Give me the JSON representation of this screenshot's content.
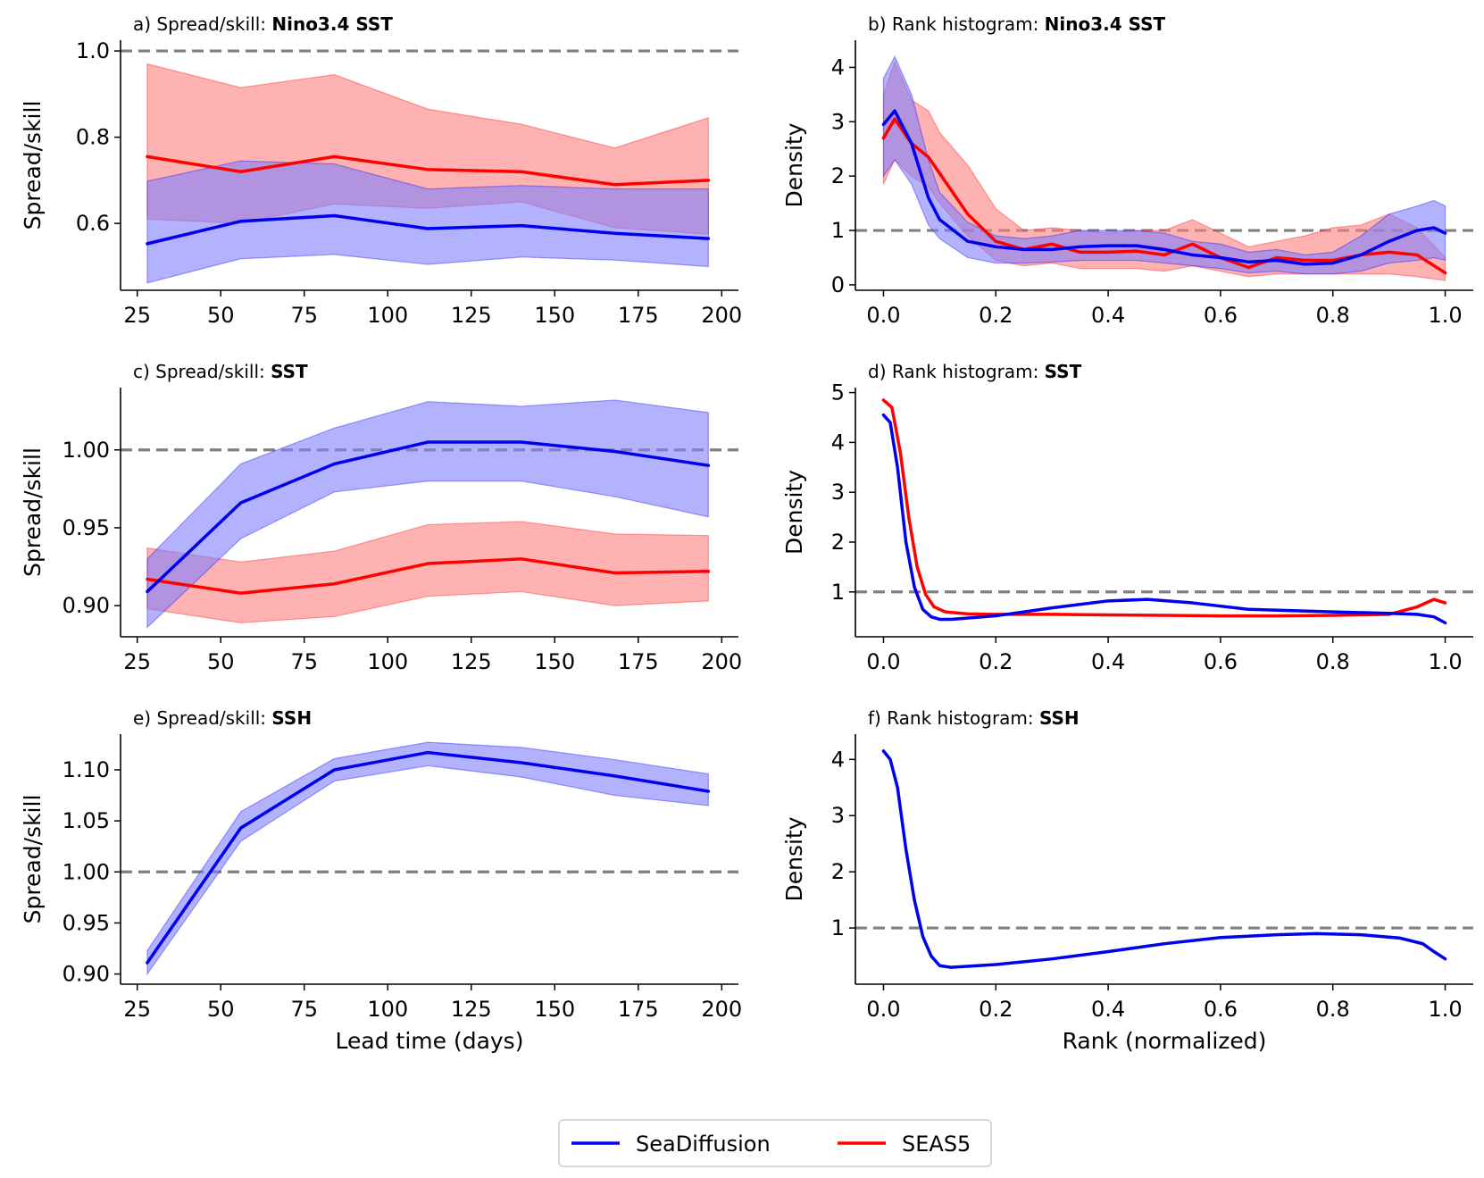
{
  "chart_data": [
    {
      "id": "a",
      "type": "line",
      "title_prefix": "a) Spread/skill: ",
      "title_bold": "Nino3.4 SST",
      "xlabel": "",
      "ylabel": "Spread/skill",
      "xlim": [
        20,
        205
      ],
      "ylim": [
        0.445,
        1.025
      ],
      "xticks": [
        25,
        50,
        75,
        100,
        125,
        150,
        175,
        200
      ],
      "yticks": [
        0.6,
        0.8,
        1.0
      ],
      "ytick_labels": [
        "0.6",
        "0.8",
        "1.0"
      ],
      "reference_line": 1.0,
      "series": [
        {
          "name": "SEAS5",
          "color": "#ff0000",
          "x": [
            28,
            56,
            84,
            112,
            140,
            168,
            196
          ],
          "y": [
            0.755,
            0.72,
            0.755,
            0.725,
            0.72,
            0.69,
            0.7
          ],
          "lower": [
            0.61,
            0.6,
            0.645,
            0.635,
            0.65,
            0.59,
            0.575
          ],
          "upper": [
            0.97,
            0.915,
            0.945,
            0.865,
            0.83,
            0.775,
            0.845
          ]
        },
        {
          "name": "SeaDiffusion",
          "color": "#0000ee",
          "x": [
            28,
            56,
            84,
            112,
            140,
            168,
            196
          ],
          "y": [
            0.553,
            0.605,
            0.618,
            0.588,
            0.595,
            0.577,
            0.565
          ],
          "lower": [
            0.462,
            0.518,
            0.528,
            0.505,
            0.522,
            0.515,
            0.5
          ],
          "upper": [
            0.698,
            0.745,
            0.738,
            0.68,
            0.688,
            0.68,
            0.68
          ]
        }
      ]
    },
    {
      "id": "b",
      "type": "line",
      "title_prefix": "b) Rank histogram: ",
      "title_bold": "Nino3.4 SST",
      "xlabel": "",
      "ylabel": "Density",
      "xlim": [
        -0.05,
        1.05
      ],
      "ylim": [
        -0.1,
        4.5
      ],
      "xticks": [
        0.0,
        0.2,
        0.4,
        0.6,
        0.8,
        1.0
      ],
      "xtick_labels": [
        "0.0",
        "0.2",
        "0.4",
        "0.6",
        "0.8",
        "1.0"
      ],
      "yticks": [
        0,
        1,
        2,
        3,
        4
      ],
      "reference_line": 1.0,
      "series": [
        {
          "name": "SEAS5",
          "color": "#ff0000",
          "x": [
            0.0,
            0.02,
            0.05,
            0.08,
            0.1,
            0.15,
            0.2,
            0.25,
            0.3,
            0.35,
            0.4,
            0.45,
            0.5,
            0.55,
            0.6,
            0.65,
            0.7,
            0.75,
            0.8,
            0.85,
            0.9,
            0.95,
            1.0
          ],
          "y": [
            2.7,
            3.05,
            2.6,
            2.35,
            2.05,
            1.3,
            0.8,
            0.65,
            0.75,
            0.6,
            0.6,
            0.62,
            0.55,
            0.75,
            0.5,
            0.32,
            0.5,
            0.45,
            0.45,
            0.55,
            0.6,
            0.55,
            0.22
          ],
          "lower": [
            1.85,
            2.3,
            2.0,
            1.8,
            1.5,
            0.9,
            0.45,
            0.35,
            0.4,
            0.3,
            0.3,
            0.3,
            0.25,
            0.35,
            0.25,
            0.15,
            0.2,
            0.2,
            0.2,
            0.2,
            0.2,
            0.15,
            0.08
          ],
          "upper": [
            3.5,
            4.1,
            3.4,
            3.2,
            2.8,
            2.2,
            1.4,
            1.0,
            1.05,
            1.0,
            0.95,
            1.0,
            1.0,
            1.2,
            0.95,
            0.7,
            0.8,
            0.9,
            1.05,
            1.1,
            1.3,
            1.05,
            0.5
          ]
        },
        {
          "name": "SeaDiffusion",
          "color": "#0000ee",
          "x": [
            0.0,
            0.02,
            0.05,
            0.08,
            0.1,
            0.15,
            0.2,
            0.25,
            0.3,
            0.35,
            0.4,
            0.45,
            0.5,
            0.55,
            0.6,
            0.65,
            0.7,
            0.75,
            0.8,
            0.85,
            0.9,
            0.95,
            0.98,
            1.0
          ],
          "y": [
            2.95,
            3.2,
            2.6,
            1.6,
            1.2,
            0.8,
            0.7,
            0.65,
            0.65,
            0.7,
            0.72,
            0.72,
            0.65,
            0.55,
            0.5,
            0.42,
            0.45,
            0.38,
            0.4,
            0.55,
            0.8,
            1.0,
            1.05,
            0.95
          ],
          "lower": [
            2.0,
            2.3,
            1.85,
            1.1,
            0.85,
            0.5,
            0.4,
            0.4,
            0.42,
            0.45,
            0.45,
            0.45,
            0.4,
            0.35,
            0.3,
            0.22,
            0.25,
            0.2,
            0.2,
            0.25,
            0.4,
            0.45,
            0.5,
            0.45
          ],
          "upper": [
            3.8,
            4.2,
            3.5,
            2.3,
            1.7,
            1.15,
            0.9,
            0.85,
            0.9,
            1.0,
            1.0,
            1.0,
            0.95,
            0.8,
            0.75,
            0.6,
            0.65,
            0.55,
            0.6,
            0.9,
            1.3,
            1.45,
            1.55,
            1.45
          ]
        }
      ]
    },
    {
      "id": "c",
      "type": "line",
      "title_prefix": "c) Spread/skill: ",
      "title_bold": "SST",
      "xlabel": "",
      "ylabel": "Spread/skill",
      "xlim": [
        20,
        205
      ],
      "ylim": [
        0.88,
        1.04
      ],
      "xticks": [
        25,
        50,
        75,
        100,
        125,
        150,
        175,
        200
      ],
      "yticks": [
        0.9,
        0.95,
        1.0
      ],
      "ytick_labels": [
        "0.90",
        "0.95",
        "1.00"
      ],
      "reference_line": 1.0,
      "series": [
        {
          "name": "SEAS5",
          "color": "#ff0000",
          "x": [
            28,
            56,
            84,
            112,
            140,
            168,
            196
          ],
          "y": [
            0.917,
            0.908,
            0.914,
            0.927,
            0.93,
            0.921,
            0.922
          ],
          "lower": [
            0.898,
            0.889,
            0.893,
            0.906,
            0.909,
            0.9,
            0.903
          ],
          "upper": [
            0.937,
            0.928,
            0.935,
            0.952,
            0.954,
            0.946,
            0.945
          ]
        },
        {
          "name": "SeaDiffusion",
          "color": "#0000ee",
          "x": [
            28,
            56,
            84,
            112,
            140,
            168,
            196
          ],
          "y": [
            0.909,
            0.966,
            0.991,
            1.005,
            1.005,
            0.999,
            0.99
          ],
          "lower": [
            0.886,
            0.943,
            0.973,
            0.98,
            0.98,
            0.97,
            0.957
          ],
          "upper": [
            0.93,
            0.991,
            1.014,
            1.031,
            1.028,
            1.032,
            1.024
          ]
        }
      ]
    },
    {
      "id": "d",
      "type": "line",
      "title_prefix": "d) Rank histogram: ",
      "title_bold": "SST",
      "xlabel": "",
      "ylabel": "Density",
      "xlim": [
        -0.05,
        1.05
      ],
      "ylim": [
        0.1,
        5.1
      ],
      "xticks": [
        0.0,
        0.2,
        0.4,
        0.6,
        0.8,
        1.0
      ],
      "xtick_labels": [
        "0.0",
        "0.2",
        "0.4",
        "0.6",
        "0.8",
        "1.0"
      ],
      "yticks": [
        1,
        2,
        3,
        4,
        5
      ],
      "reference_line": 1.0,
      "series": [
        {
          "name": "SEAS5",
          "color": "#ff0000",
          "x": [
            0.0,
            0.015,
            0.03,
            0.045,
            0.06,
            0.075,
            0.09,
            0.11,
            0.15,
            0.2,
            0.3,
            0.4,
            0.5,
            0.6,
            0.7,
            0.8,
            0.9,
            0.95,
            0.98,
            1.0
          ],
          "y": [
            4.85,
            4.7,
            3.8,
            2.5,
            1.5,
            0.95,
            0.7,
            0.6,
            0.56,
            0.55,
            0.55,
            0.54,
            0.53,
            0.52,
            0.52,
            0.53,
            0.55,
            0.7,
            0.85,
            0.78
          ],
          "lower": [
            4.85,
            4.7,
            3.8,
            2.5,
            1.5,
            0.95,
            0.7,
            0.6,
            0.56,
            0.55,
            0.55,
            0.54,
            0.53,
            0.52,
            0.52,
            0.53,
            0.55,
            0.7,
            0.85,
            0.78
          ],
          "upper": [
            4.85,
            4.7,
            3.8,
            2.5,
            1.5,
            0.95,
            0.7,
            0.6,
            0.56,
            0.55,
            0.55,
            0.54,
            0.53,
            0.52,
            0.52,
            0.53,
            0.55,
            0.7,
            0.85,
            0.78
          ]
        },
        {
          "name": "SeaDiffusion",
          "color": "#0000ee",
          "x": [
            0.0,
            0.012,
            0.025,
            0.04,
            0.055,
            0.07,
            0.085,
            0.1,
            0.12,
            0.2,
            0.3,
            0.4,
            0.47,
            0.55,
            0.65,
            0.8,
            0.9,
            0.95,
            0.98,
            1.0
          ],
          "y": [
            4.55,
            4.4,
            3.5,
            2.0,
            1.1,
            0.65,
            0.5,
            0.45,
            0.45,
            0.52,
            0.68,
            0.82,
            0.85,
            0.78,
            0.65,
            0.6,
            0.57,
            0.55,
            0.5,
            0.38
          ],
          "lower": [
            4.55,
            4.4,
            3.5,
            2.0,
            1.1,
            0.65,
            0.5,
            0.45,
            0.45,
            0.52,
            0.68,
            0.82,
            0.85,
            0.78,
            0.65,
            0.6,
            0.57,
            0.55,
            0.5,
            0.38
          ],
          "upper": [
            4.55,
            4.4,
            3.5,
            2.0,
            1.1,
            0.65,
            0.5,
            0.45,
            0.45,
            0.52,
            0.68,
            0.82,
            0.85,
            0.78,
            0.65,
            0.6,
            0.57,
            0.55,
            0.5,
            0.38
          ]
        }
      ]
    },
    {
      "id": "e",
      "type": "line",
      "title_prefix": "e) Spread/skill: ",
      "title_bold": "SSH",
      "xlabel": "Lead time (days)",
      "ylabel": "Spread/skill",
      "xlim": [
        20,
        205
      ],
      "ylim": [
        0.89,
        1.135
      ],
      "xticks": [
        25,
        50,
        75,
        100,
        125,
        150,
        175,
        200
      ],
      "yticks": [
        0.9,
        0.95,
        1.0,
        1.05,
        1.1
      ],
      "ytick_labels": [
        "0.90",
        "0.95",
        "1.00",
        "1.05",
        "1.10"
      ],
      "reference_line": 1.0,
      "series": [
        {
          "name": "SeaDiffusion",
          "color": "#0000ee",
          "x": [
            28,
            56,
            84,
            112,
            140,
            168,
            196
          ],
          "y": [
            0.911,
            1.043,
            1.1,
            1.117,
            1.107,
            1.094,
            1.079
          ],
          "lower": [
            0.9,
            1.03,
            1.089,
            1.104,
            1.093,
            1.075,
            1.065
          ],
          "upper": [
            0.923,
            1.059,
            1.111,
            1.127,
            1.122,
            1.11,
            1.096
          ]
        }
      ]
    },
    {
      "id": "f",
      "type": "line",
      "title_prefix": "f) Rank histogram: ",
      "title_bold": "SSH",
      "xlabel": "Rank (normalized)",
      "ylabel": "Density",
      "xlim": [
        -0.05,
        1.05
      ],
      "ylim": [
        0.0,
        4.45
      ],
      "xticks": [
        0.0,
        0.2,
        0.4,
        0.6,
        0.8,
        1.0
      ],
      "xtick_labels": [
        "0.0",
        "0.2",
        "0.4",
        "0.6",
        "0.8",
        "1.0"
      ],
      "yticks": [
        1,
        2,
        3,
        4
      ],
      "reference_line": 1.0,
      "series": [
        {
          "name": "SeaDiffusion",
          "color": "#0000ee",
          "x": [
            0.0,
            0.012,
            0.025,
            0.04,
            0.055,
            0.07,
            0.085,
            0.1,
            0.12,
            0.2,
            0.3,
            0.4,
            0.5,
            0.6,
            0.7,
            0.77,
            0.85,
            0.92,
            0.96,
            0.98,
            1.0
          ],
          "y": [
            4.15,
            4.0,
            3.5,
            2.4,
            1.5,
            0.85,
            0.5,
            0.33,
            0.3,
            0.35,
            0.45,
            0.58,
            0.72,
            0.83,
            0.88,
            0.9,
            0.88,
            0.82,
            0.72,
            0.58,
            0.45
          ],
          "lower": [
            4.15,
            4.0,
            3.5,
            2.4,
            1.5,
            0.85,
            0.5,
            0.33,
            0.3,
            0.35,
            0.45,
            0.58,
            0.72,
            0.83,
            0.88,
            0.89,
            0.87,
            0.8,
            0.7,
            0.56,
            0.43
          ],
          "upper": [
            4.15,
            4.0,
            3.5,
            2.4,
            1.5,
            0.85,
            0.5,
            0.33,
            0.3,
            0.35,
            0.45,
            0.58,
            0.72,
            0.83,
            0.89,
            0.91,
            0.89,
            0.84,
            0.74,
            0.6,
            0.47
          ]
        }
      ]
    }
  ],
  "legend": {
    "position": "bottom-center",
    "entries": [
      {
        "label": "SeaDiffusion",
        "color": "#0000ee"
      },
      {
        "label": "SEAS5",
        "color": "#ff0000"
      }
    ]
  },
  "colors": {
    "reference_line": "#808080",
    "seas5_fill": "#ff7f7f",
    "seadiffusion_fill": "#7f7fff"
  }
}
